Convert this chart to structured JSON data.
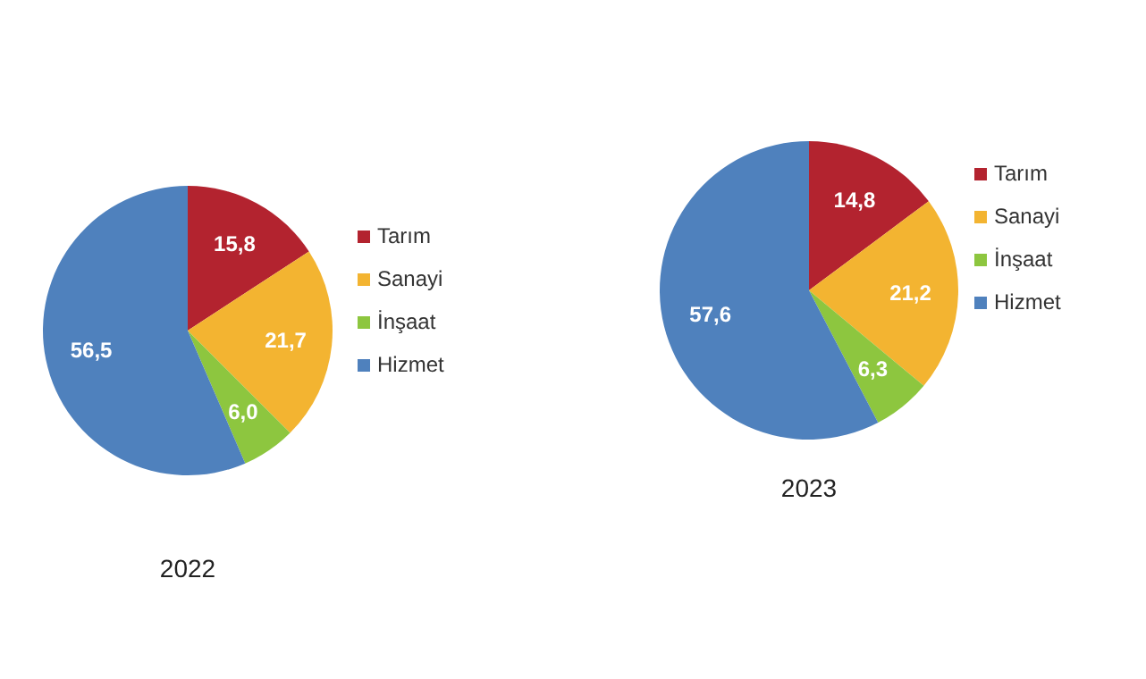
{
  "chart_data": [
    {
      "type": "pie",
      "title": "2022",
      "categories": [
        "Tarım",
        "Sanayi",
        "İnşaat",
        "Hizmet"
      ],
      "values": [
        15.8,
        21.7,
        6.0,
        56.5
      ],
      "value_labels": [
        "15,8",
        "21,7",
        "6,0",
        "56,5"
      ],
      "colors": [
        "#b3232f",
        "#f3b431",
        "#8dc63f",
        "#4f81bd"
      ],
      "legend": "right"
    },
    {
      "type": "pie",
      "title": "2023",
      "categories": [
        "Tarım",
        "Sanayi",
        "İnşaat",
        "Hizmet"
      ],
      "values": [
        14.8,
        21.2,
        6.3,
        57.6
      ],
      "value_labels": [
        "14,8",
        "21,2",
        "6,3",
        "57,6"
      ],
      "colors": [
        "#b3232f",
        "#f3b431",
        "#8dc63f",
        "#4f81bd"
      ],
      "legend": "right"
    }
  ]
}
